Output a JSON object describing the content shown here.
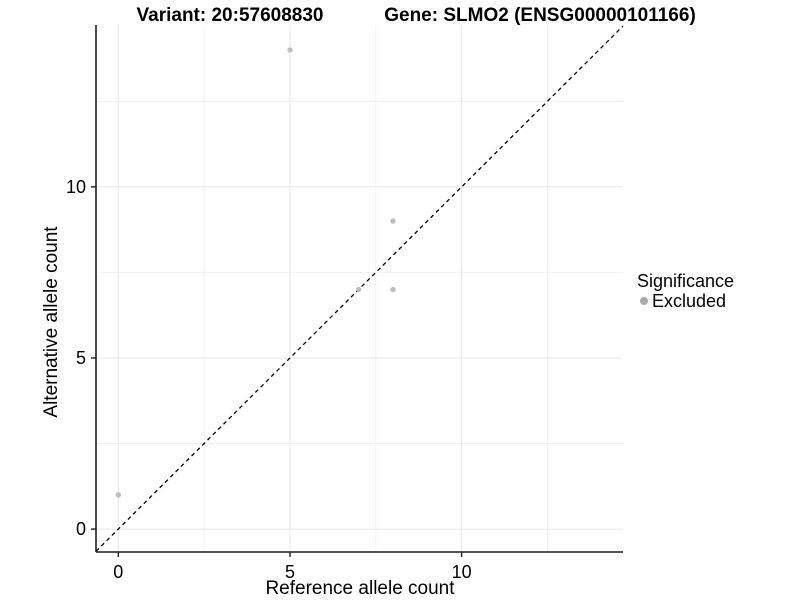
{
  "header": {
    "variant_title": "Variant: 20:57608830",
    "gene_title": "Gene: SLMO2 (ENSG00000101166)"
  },
  "legend": {
    "title": "Significance",
    "items": [
      {
        "label": "Excluded",
        "color": "#b5b5b5"
      }
    ]
  },
  "chart_data": {
    "type": "scatter",
    "title": "Variant: 20:57608830 — Gene: SLMO2 (ENSG00000101166)",
    "xlabel": "Reference allele count",
    "ylabel": "Alternative allele count",
    "xlim": [
      -0.65,
      14.7
    ],
    "ylim": [
      -0.67,
      14.73
    ],
    "x_ticks": [
      0,
      5,
      10
    ],
    "y_ticks": [
      0,
      5,
      10
    ],
    "x_minor_gridlines": [
      2.5,
      7.5,
      12.5
    ],
    "y_minor_gridlines": [
      2.5,
      7.5,
      12.5
    ],
    "grid": "major+minor",
    "legend_position": "right",
    "series": [
      {
        "name": "Excluded",
        "color": "#bdbdbd",
        "points": [
          {
            "x": 0,
            "y": 1
          },
          {
            "x": 5,
            "y": 14
          },
          {
            "x": 7,
            "y": 7
          },
          {
            "x": 8,
            "y": 7
          },
          {
            "x": 8,
            "y": 9
          }
        ]
      }
    ],
    "reference_line": {
      "kind": "identity",
      "style": "dashed",
      "color": "#000000"
    }
  },
  "style": {
    "point_color": "#bdbdbd",
    "point_radius": 2.7,
    "grid_major_color": "#e6e6e6",
    "grid_minor_color": "#f0f0f0",
    "axis_color": "#1f1f1f",
    "tick_color": "#1f1f1f",
    "tick_label_color": "#000000",
    "tick_font_size": 18
  }
}
